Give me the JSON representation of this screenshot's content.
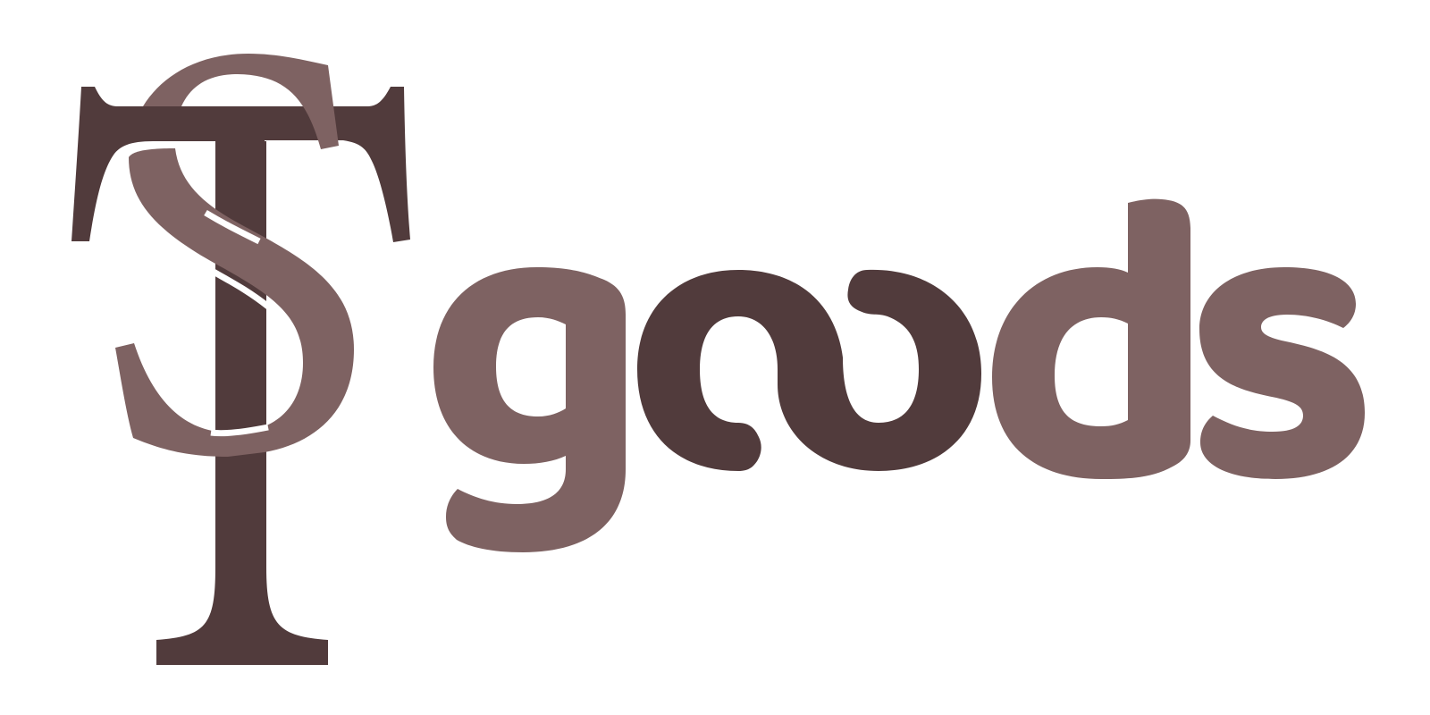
{
  "logo": {
    "monogram_letters": "ST",
    "wordmark": "goods",
    "full_mark": "ST goods"
  },
  "colors": {
    "background": "#ffffff",
    "dark_brown": "#513b3c",
    "mauve": "#7e6262"
  },
  "icons": {
    "monogram": "st-monogram-icon",
    "wordmark": "goods-wordmark"
  }
}
